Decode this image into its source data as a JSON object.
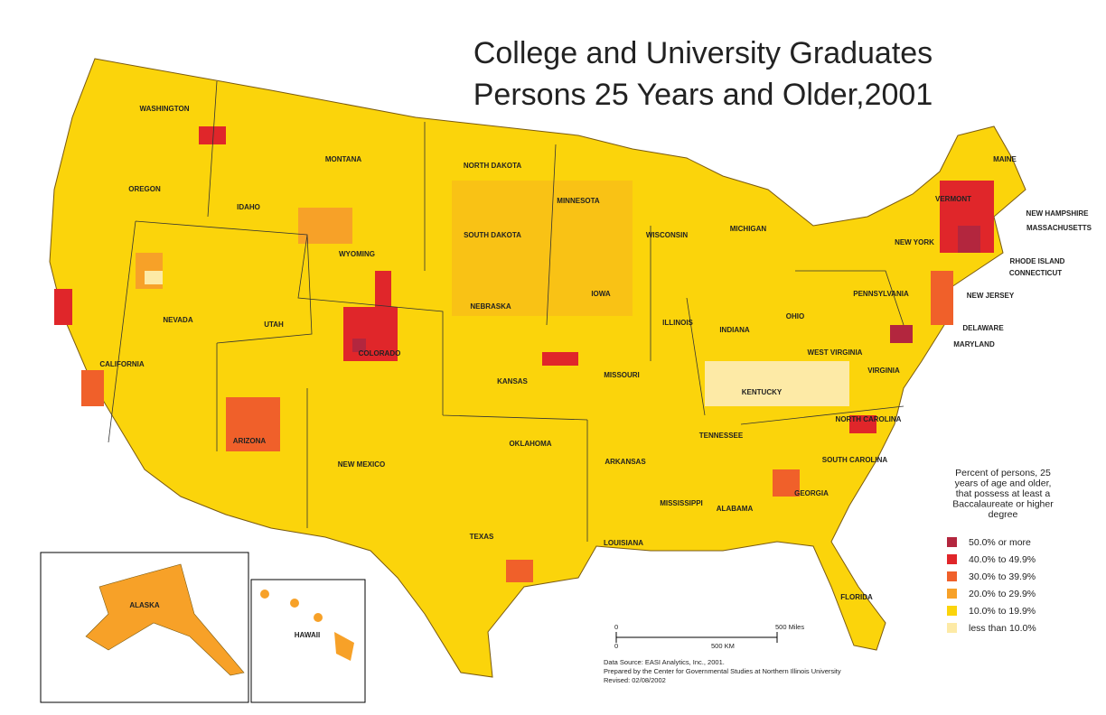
{
  "title": {
    "line1": "College and University Graduates",
    "line2": "Persons 25 Years and Older,2001"
  },
  "states": [
    "WASHINGTON",
    "MONTANA",
    "NORTH DAKOTA",
    "OREGON",
    "IDAHO",
    "WYOMING",
    "SOUTH DAKOTA",
    "MINNESOTA",
    "WISCONSIN",
    "MICHIGAN",
    "NEVADA",
    "UTAH",
    "NEBRASKA",
    "IOWA",
    "ILLINOIS",
    "INDIANA",
    "OHIO",
    "PENNSYLVANIA",
    "NEW YORK",
    "VERMONT",
    "MAINE",
    "NEW HAMPSHIRE",
    "MASSACHUSETTS",
    "RHODE ISLAND",
    "CONNECTICUT",
    "NEW JERSEY",
    "DELAWARE",
    "MARYLAND",
    "WEST VIRGINIA",
    "VIRGINIA",
    "KENTUCKY",
    "COLORADO",
    "KANSAS",
    "MISSOURI",
    "CALIFORNIA",
    "ARIZONA",
    "NEW MEXICO",
    "OKLAHOMA",
    "ARKANSAS",
    "TENNESSEE",
    "NORTH CAROLINA",
    "SOUTH CAROLINA",
    "GEORGIA",
    "ALABAMA",
    "MISSISSIPPI",
    "LOUISIANA",
    "TEXAS",
    "FLORIDA"
  ],
  "insets": {
    "alaska": "ALASKA",
    "hawaii": "HAWAII"
  },
  "legend": {
    "title_lines": [
      "Percent of persons, 25",
      "years of age and older,",
      "that possess at least a",
      "Baccalaureate or higher",
      "degree"
    ],
    "items": [
      {
        "label": "50.0% or more",
        "color": "#b3263e"
      },
      {
        "label": "40.0% to 49.9%",
        "color": "#e0262a"
      },
      {
        "label": "30.0% to 39.9%",
        "color": "#f0602a"
      },
      {
        "label": "20.0% to 29.9%",
        "color": "#f7a128"
      },
      {
        "label": "10.0% to 19.9%",
        "color": "#fbd40b"
      },
      {
        "label": "less than 10.0%",
        "color": "#fdeaa6"
      }
    ]
  },
  "scale_bar": {
    "miles_zero": "0",
    "miles_label": "500 Miles",
    "km_zero": "0",
    "km_label": "500 KM"
  },
  "credits": [
    "Data Source: EASI Analytics, Inc., 2001.",
    "Prepared by the Center for Governmental Studies at Northern Illinois University",
    "Revised: 02/08/2002"
  ]
}
